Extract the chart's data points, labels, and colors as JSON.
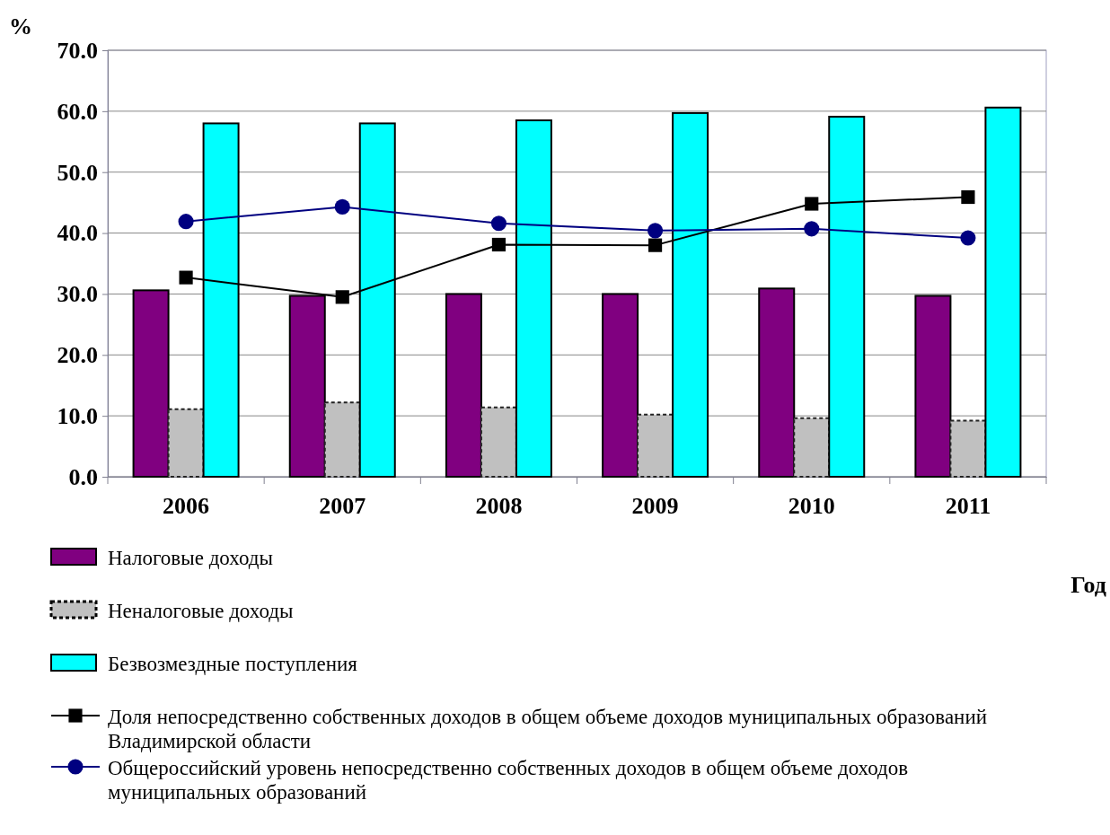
{
  "chart_data": {
    "type": "bar",
    "ylabel": "%",
    "xlabel": "Год",
    "categories": [
      "2006",
      "2007",
      "2008",
      "2009",
      "2010",
      "2011"
    ],
    "series": [
      {
        "name": "Налоговые доходы",
        "color": "#800080",
        "values": [
          30.6,
          29.7,
          30.0,
          30.0,
          30.9,
          29.7
        ]
      },
      {
        "name": "Неналоговые доходы",
        "color": "#c0c0c0",
        "values": [
          11.1,
          12.2,
          11.4,
          10.2,
          9.6,
          9.2
        ]
      },
      {
        "name": "Безвозмездные поступления",
        "color": "#00ffff",
        "values": [
          58.0,
          58.0,
          58.5,
          59.7,
          59.1,
          60.6
        ]
      },
      {
        "name": "Доля непосредственно собственных доходов в общем объеме доходов муниципальных образований Владимирской области",
        "type": "line",
        "color": "#000000",
        "marker": "square",
        "values": [
          32.7,
          29.5,
          38.1,
          38.0,
          44.8,
          45.9
        ]
      },
      {
        "name": "Общероссийский уровень непосредственно собственных доходов в общем объеме доходов муниципальных образований",
        "type": "line",
        "color": "#000080",
        "marker": "circle",
        "values": [
          41.9,
          44.3,
          41.6,
          40.4,
          40.7,
          39.2
        ]
      }
    ],
    "ylim": [
      0,
      70
    ],
    "yticks": [
      {
        "value": 0,
        "label": "0.0"
      },
      {
        "value": 10,
        "label": "10.0"
      },
      {
        "value": 20,
        "label": "20.0"
      },
      {
        "value": 30,
        "label": "30.0"
      },
      {
        "value": 40,
        "label": "40.0"
      },
      {
        "value": 50,
        "label": "50.0"
      },
      {
        "value": 60,
        "label": "60.0"
      },
      {
        "value": 70,
        "label": "70.0"
      }
    ],
    "grid": "y",
    "legend": "bottom left"
  }
}
